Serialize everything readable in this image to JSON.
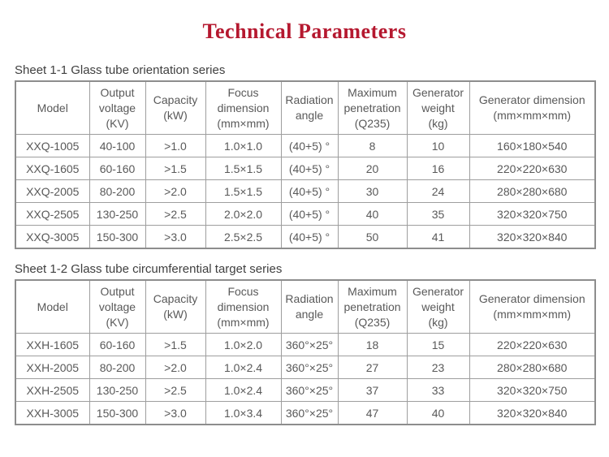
{
  "page": {
    "title": "Technical Parameters",
    "title_color": "#b5182f",
    "text_color": "#595959",
    "border_color": "#9e9e9e"
  },
  "tables": [
    {
      "caption": "Sheet 1-1 Glass tube orientation series",
      "headers": [
        "Model",
        "Output\nvoltage\n(KV)",
        "Capacity\n(kW)",
        "Focus\ndimension\n(mm×mm)",
        "Radiation\nangle",
        "Maximum\npenetration\n(Q235)",
        "Generator\nweight\n(kg)",
        "Generator dimension\n(mm×mm×mm)"
      ],
      "rows": [
        [
          "XXQ-1005",
          "40-100",
          ">1.0",
          "1.0×1.0",
          "(40+5) °",
          "8",
          "10",
          "160×180×540"
        ],
        [
          "XXQ-1605",
          "60-160",
          ">1.5",
          "1.5×1.5",
          "(40+5) °",
          "20",
          "16",
          "220×220×630"
        ],
        [
          "XXQ-2005",
          "80-200",
          ">2.0",
          "1.5×1.5",
          "(40+5) °",
          "30",
          "24",
          "280×280×680"
        ],
        [
          "XXQ-2505",
          "130-250",
          ">2.5",
          "2.0×2.0",
          "(40+5) °",
          "40",
          "35",
          "320×320×750"
        ],
        [
          "XXQ-3005",
          "150-300",
          ">3.0",
          "2.5×2.5",
          "(40+5) °",
          "50",
          "41",
          "320×320×840"
        ]
      ]
    },
    {
      "caption": "Sheet 1-2 Glass tube circumferential target series",
      "headers": [
        "Model",
        "Output\nvoltage\n(KV)",
        "Capacity\n(kW)",
        "Focus\ndimension\n(mm×mm)",
        "Radiation\nangle",
        "Maximum\npenetration\n(Q235)",
        "Generator\nweight\n(kg)",
        "Generator dimension\n(mm×mm×mm)"
      ],
      "rows": [
        [
          "XXH-1605",
          "60-160",
          ">1.5",
          "1.0×2.0",
          "360°×25°",
          "18",
          "15",
          "220×220×630"
        ],
        [
          "XXH-2005",
          "80-200",
          ">2.0",
          "1.0×2.4",
          "360°×25°",
          "27",
          "23",
          "280×280×680"
        ],
        [
          "XXH-2505",
          "130-250",
          ">2.5",
          "1.0×2.4",
          "360°×25°",
          "37",
          "33",
          "320×320×750"
        ],
        [
          "XXH-3005",
          "150-300",
          ">3.0",
          "1.0×3.4",
          "360°×25°",
          "47",
          "40",
          "320×320×840"
        ]
      ]
    }
  ]
}
